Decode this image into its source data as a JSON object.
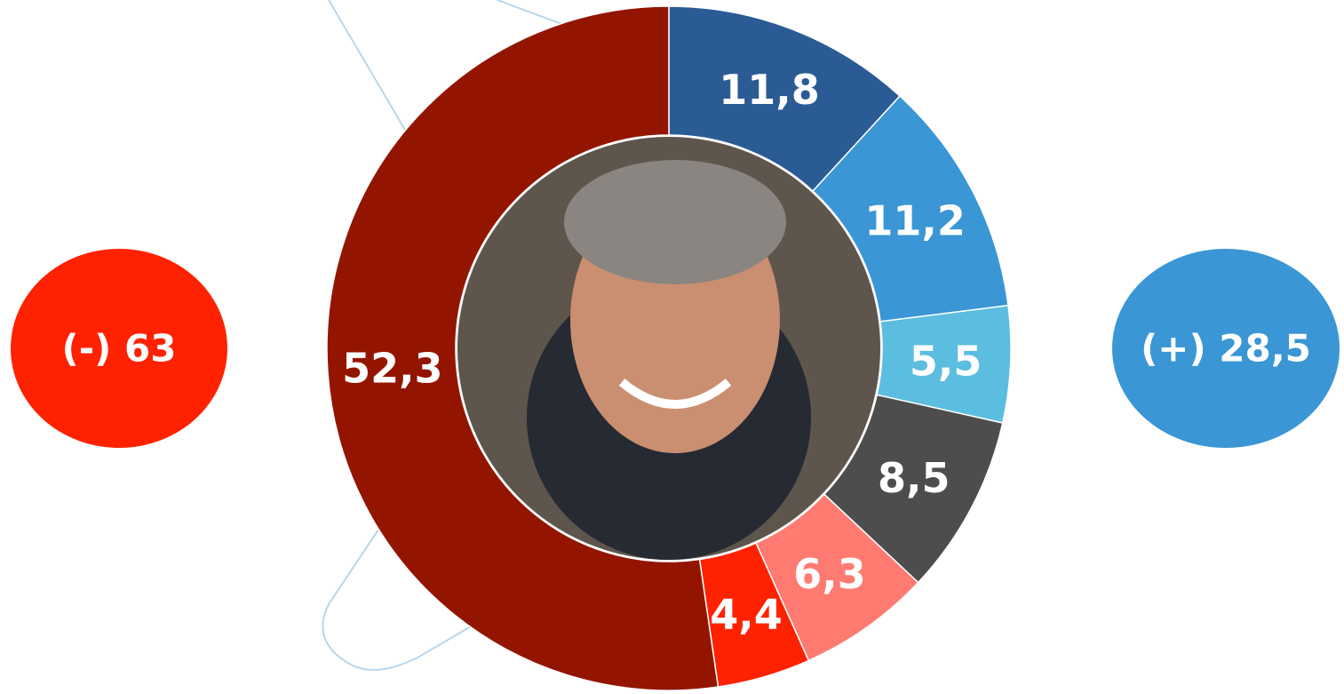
{
  "chart_data": {
    "type": "donut",
    "values": [
      11.8,
      11.2,
      5.5,
      8.5,
      6.3,
      4.4,
      52.3
    ],
    "value_labels": [
      "11,8",
      "11,2",
      "5,5",
      "8,5",
      "6,3",
      "4,4",
      "52,3"
    ],
    "colors": [
      "#2b5b94",
      "#3a96d4",
      "#5bbde0",
      "#4d4d4d",
      "#ff7b72",
      "#ff2200",
      "#931500"
    ],
    "annotations": [
      {
        "text": "(-) 63",
        "color": "#ff2200"
      },
      {
        "text": "(+) 28,5",
        "color": "#3a96d4"
      }
    ]
  }
}
